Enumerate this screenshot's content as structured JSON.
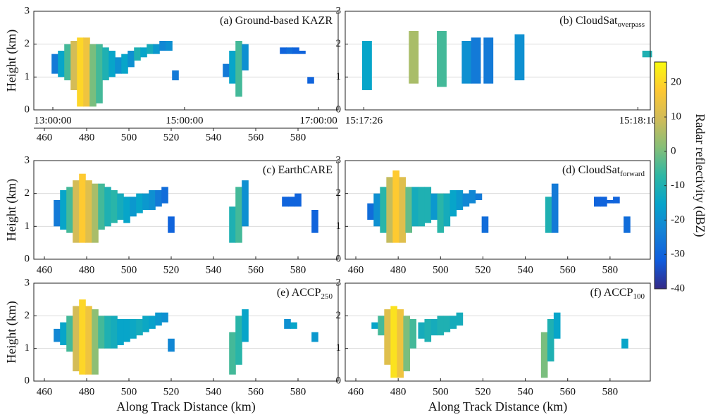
{
  "chart_data": [
    {
      "type": "profile",
      "title": "(a) Ground-based KAZR",
      "ylabel": "Height (km)",
      "grid": true,
      "xlim": [
        455,
        599
      ],
      "ylim": [
        0,
        3
      ],
      "yticks": [
        0,
        1,
        2,
        3
      ],
      "xticks": [
        460,
        480,
        500,
        520,
        540,
        560,
        580
      ],
      "x2ticks": [
        {
          "value": 464,
          "label": "13:00:00"
        },
        {
          "value": 526.3,
          "label": "15:00:00"
        },
        {
          "value": 589.7,
          "label": "17:00:00"
        }
      ],
      "columns": {
        "x": [
          465,
          468,
          471,
          474,
          477,
          480,
          483,
          486,
          489,
          492,
          495,
          498,
          501,
          504,
          507,
          510,
          513,
          516,
          519,
          522,
          546,
          549,
          552,
          555,
          573,
          576,
          579,
          582,
          586
        ],
        "base": [
          1.1,
          1.0,
          0.9,
          0.6,
          0.1,
          0.1,
          0.1,
          0.2,
          0.9,
          1.0,
          1.1,
          1.1,
          1.3,
          1.5,
          1.6,
          1.7,
          1.7,
          1.8,
          1.8,
          0.9,
          1.0,
          0.8,
          0.4,
          1.2,
          1.7,
          1.7,
          1.7,
          1.7,
          0.8
        ],
        "top": [
          1.7,
          1.8,
          2.0,
          2.1,
          2.2,
          2.2,
          2.0,
          2.0,
          1.9,
          1.8,
          1.6,
          1.7,
          1.8,
          1.9,
          1.9,
          2.0,
          2.0,
          2.1,
          2.1,
          1.2,
          1.4,
          1.8,
          2.1,
          2.0,
          1.9,
          1.9,
          1.9,
          1.8,
          1.0
        ],
        "dbz": [
          -25,
          -15,
          -5,
          10,
          20,
          15,
          0,
          -5,
          -10,
          -15,
          -20,
          -15,
          -20,
          -10,
          -15,
          -12,
          -18,
          -22,
          -20,
          -25,
          -25,
          -15,
          -5,
          -20,
          -30,
          -28,
          -30,
          -30,
          -30
        ]
      }
    },
    {
      "type": "profile",
      "title": "(b) CloudSat",
      "title_sub": "overpass",
      "grid": true,
      "xlim": [
        -3,
        46
      ],
      "ylim": [
        0,
        3
      ],
      "yticks": [
        0,
        1,
        2,
        3
      ],
      "xticks": [
        {
          "value": 0,
          "label": "15:17:26"
        },
        {
          "value": 44,
          "label": "15:18:10"
        }
      ],
      "columns": {
        "x": [
          0.5,
          8,
          12.5,
          16.5,
          18,
          20,
          25,
          45.5
        ],
        "base": [
          0.6,
          0.8,
          0.7,
          0.8,
          0.8,
          0.8,
          0.9,
          1.6
        ],
        "top": [
          2.1,
          2.4,
          2.4,
          2.1,
          2.2,
          2.2,
          2.3,
          1.8
        ],
        "dbz": [
          -15,
          5,
          -5,
          -20,
          -25,
          -25,
          -20,
          -10
        ]
      }
    },
    {
      "type": "profile",
      "title": "(c) EarthCARE",
      "ylabel": "Height (km)",
      "grid": true,
      "xlim": [
        455,
        599
      ],
      "ylim": [
        0,
        3
      ],
      "yticks": [
        0,
        1,
        2,
        3
      ],
      "xticks": [
        460,
        480,
        500,
        520,
        540,
        560,
        580
      ],
      "columns": {
        "x": [
          466,
          469,
          472,
          475,
          478,
          481,
          484,
          487,
          490,
          493,
          496,
          499,
          502,
          505,
          508,
          511,
          514,
          517,
          520,
          549,
          552,
          555,
          574,
          577,
          580,
          588
        ],
        "base": [
          1.0,
          0.9,
          0.8,
          0.5,
          0.5,
          0.5,
          0.5,
          0.9,
          1.0,
          1.1,
          1.2,
          1.1,
          1.3,
          1.4,
          1.5,
          1.5,
          1.6,
          1.7,
          0.8,
          0.5,
          0.5,
          1.0,
          1.6,
          1.6,
          1.6,
          0.8
        ],
        "top": [
          1.8,
          2.1,
          2.2,
          2.4,
          2.6,
          2.4,
          2.3,
          2.3,
          2.2,
          2.1,
          2.0,
          1.9,
          1.9,
          2.0,
          2.0,
          2.1,
          2.1,
          2.2,
          1.3,
          1.6,
          2.2,
          2.4,
          1.9,
          1.9,
          2.0,
          1.5
        ],
        "dbz": [
          -25,
          -15,
          -5,
          10,
          18,
          12,
          5,
          -5,
          -10,
          -8,
          -12,
          -15,
          -18,
          -15,
          -18,
          -20,
          -25,
          -28,
          -30,
          -10,
          -5,
          -20,
          -30,
          -30,
          -30,
          -30
        ]
      }
    },
    {
      "type": "profile",
      "title": "(d) CloudSat",
      "title_sub": "forward",
      "grid": true,
      "xlim": [
        455,
        599
      ],
      "ylim": [
        0,
        3
      ],
      "yticks": [
        0,
        1,
        2,
        3
      ],
      "xticks": [
        460,
        480,
        500,
        520,
        540,
        560,
        580
      ],
      "columns": {
        "x": [
          467,
          470,
          473,
          476,
          479,
          482,
          485,
          488,
          491,
          494,
          497,
          500,
          503,
          506,
          509,
          512,
          515,
          518,
          521,
          551,
          554,
          574,
          577,
          580,
          583,
          588
        ],
        "base": [
          1.2,
          1.0,
          0.8,
          0.5,
          0.5,
          0.5,
          0.8,
          1.0,
          1.0,
          1.1,
          1.2,
          0.8,
          1.0,
          1.3,
          1.5,
          1.6,
          1.7,
          1.8,
          0.8,
          0.8,
          0.8,
          1.6,
          1.6,
          1.7,
          1.7,
          0.8
        ],
        "top": [
          1.7,
          2.0,
          2.2,
          2.5,
          2.7,
          2.5,
          2.2,
          2.2,
          2.2,
          2.2,
          2.0,
          2.0,
          2.0,
          2.1,
          2.1,
          2.0,
          2.1,
          2.0,
          1.3,
          1.9,
          2.3,
          1.9,
          1.9,
          1.8,
          1.9,
          1.3
        ],
        "dbz": [
          -28,
          -20,
          -8,
          8,
          18,
          12,
          -2,
          -12,
          -10,
          -10,
          -18,
          -8,
          -12,
          -15,
          -18,
          -22,
          -22,
          -25,
          -28,
          -10,
          -25,
          -30,
          -30,
          -30,
          -30,
          -28
        ]
      }
    },
    {
      "type": "profile",
      "title": "(e) ACCP",
      "title_sub": "250",
      "ylabel": "Height (km)",
      "xlabel": "Along Track Distance (km)",
      "grid": true,
      "xlim": [
        455,
        599
      ],
      "ylim": [
        0,
        3
      ],
      "yticks": [
        0,
        1,
        2,
        3
      ],
      "xticks": [
        460,
        480,
        500,
        520,
        540,
        560,
        580
      ],
      "columns": {
        "x": [
          466,
          469,
          472,
          475,
          478,
          481,
          484,
          487,
          490,
          493,
          496,
          499,
          502,
          505,
          508,
          511,
          514,
          517,
          520,
          549,
          552,
          555,
          575,
          578,
          588
        ],
        "base": [
          1.2,
          1.1,
          0.9,
          0.3,
          0.2,
          0.2,
          0.2,
          1.0,
          1.0,
          1.0,
          1.1,
          1.2,
          1.3,
          1.4,
          1.5,
          1.6,
          1.7,
          1.8,
          0.9,
          0.2,
          0.5,
          1.2,
          1.6,
          1.6,
          1.2
        ],
        "top": [
          1.6,
          1.8,
          2.0,
          2.3,
          2.5,
          2.3,
          2.2,
          2.0,
          2.0,
          2.0,
          1.9,
          1.9,
          1.9,
          1.9,
          2.0,
          2.0,
          2.1,
          2.1,
          1.3,
          1.5,
          2.0,
          2.2,
          1.9,
          1.8,
          1.5
        ],
        "dbz": [
          -22,
          -15,
          -5,
          10,
          20,
          15,
          2,
          -5,
          -10,
          -12,
          -15,
          -15,
          -14,
          -12,
          -14,
          -16,
          -18,
          -20,
          -22,
          -5,
          -8,
          -15,
          -20,
          -15,
          -18
        ]
      }
    },
    {
      "type": "profile",
      "title": "(f) ACCP",
      "title_sub": "100",
      "xlabel": "Along Track Distance (km)",
      "grid": true,
      "xlim": [
        455,
        599
      ],
      "ylim": [
        0,
        3
      ],
      "yticks": [
        0,
        1,
        2,
        3
      ],
      "xticks": [
        460,
        480,
        500,
        520,
        540,
        560,
        580
      ],
      "columns": {
        "x": [
          469,
          472,
          475,
          478,
          481,
          484,
          487,
          491,
          494,
          497,
          500,
          503,
          506,
          509,
          549,
          552,
          555,
          587
        ],
        "base": [
          1.6,
          1.4,
          0.5,
          0.1,
          0.1,
          0.3,
          1.0,
          1.3,
          1.2,
          1.4,
          1.4,
          1.5,
          1.6,
          1.7,
          0.1,
          0.6,
          1.3,
          1.0
        ],
        "top": [
          1.8,
          2.0,
          2.2,
          2.3,
          2.2,
          2.0,
          1.9,
          1.8,
          1.9,
          1.9,
          2.0,
          2.0,
          2.0,
          2.1,
          1.5,
          1.9,
          2.1,
          1.3
        ],
        "dbz": [
          -15,
          -5,
          12,
          22,
          15,
          0,
          -5,
          -12,
          -10,
          -12,
          -10,
          -10,
          -12,
          -12,
          0,
          -10,
          -15,
          -15
        ]
      }
    },
    {
      "type": "colorbar",
      "label": "Radar reflectivity (dBZ)",
      "ylim": [
        -40,
        26
      ],
      "yticks": [
        -40,
        -30,
        -20,
        -10,
        0,
        10,
        20
      ],
      "colors": [
        "#352a87",
        "#0f5cdd",
        "#1481d6",
        "#06a4ca",
        "#2eb7a4",
        "#87bf77",
        "#d1bb59",
        "#fec832",
        "#f9fb0e"
      ]
    }
  ]
}
